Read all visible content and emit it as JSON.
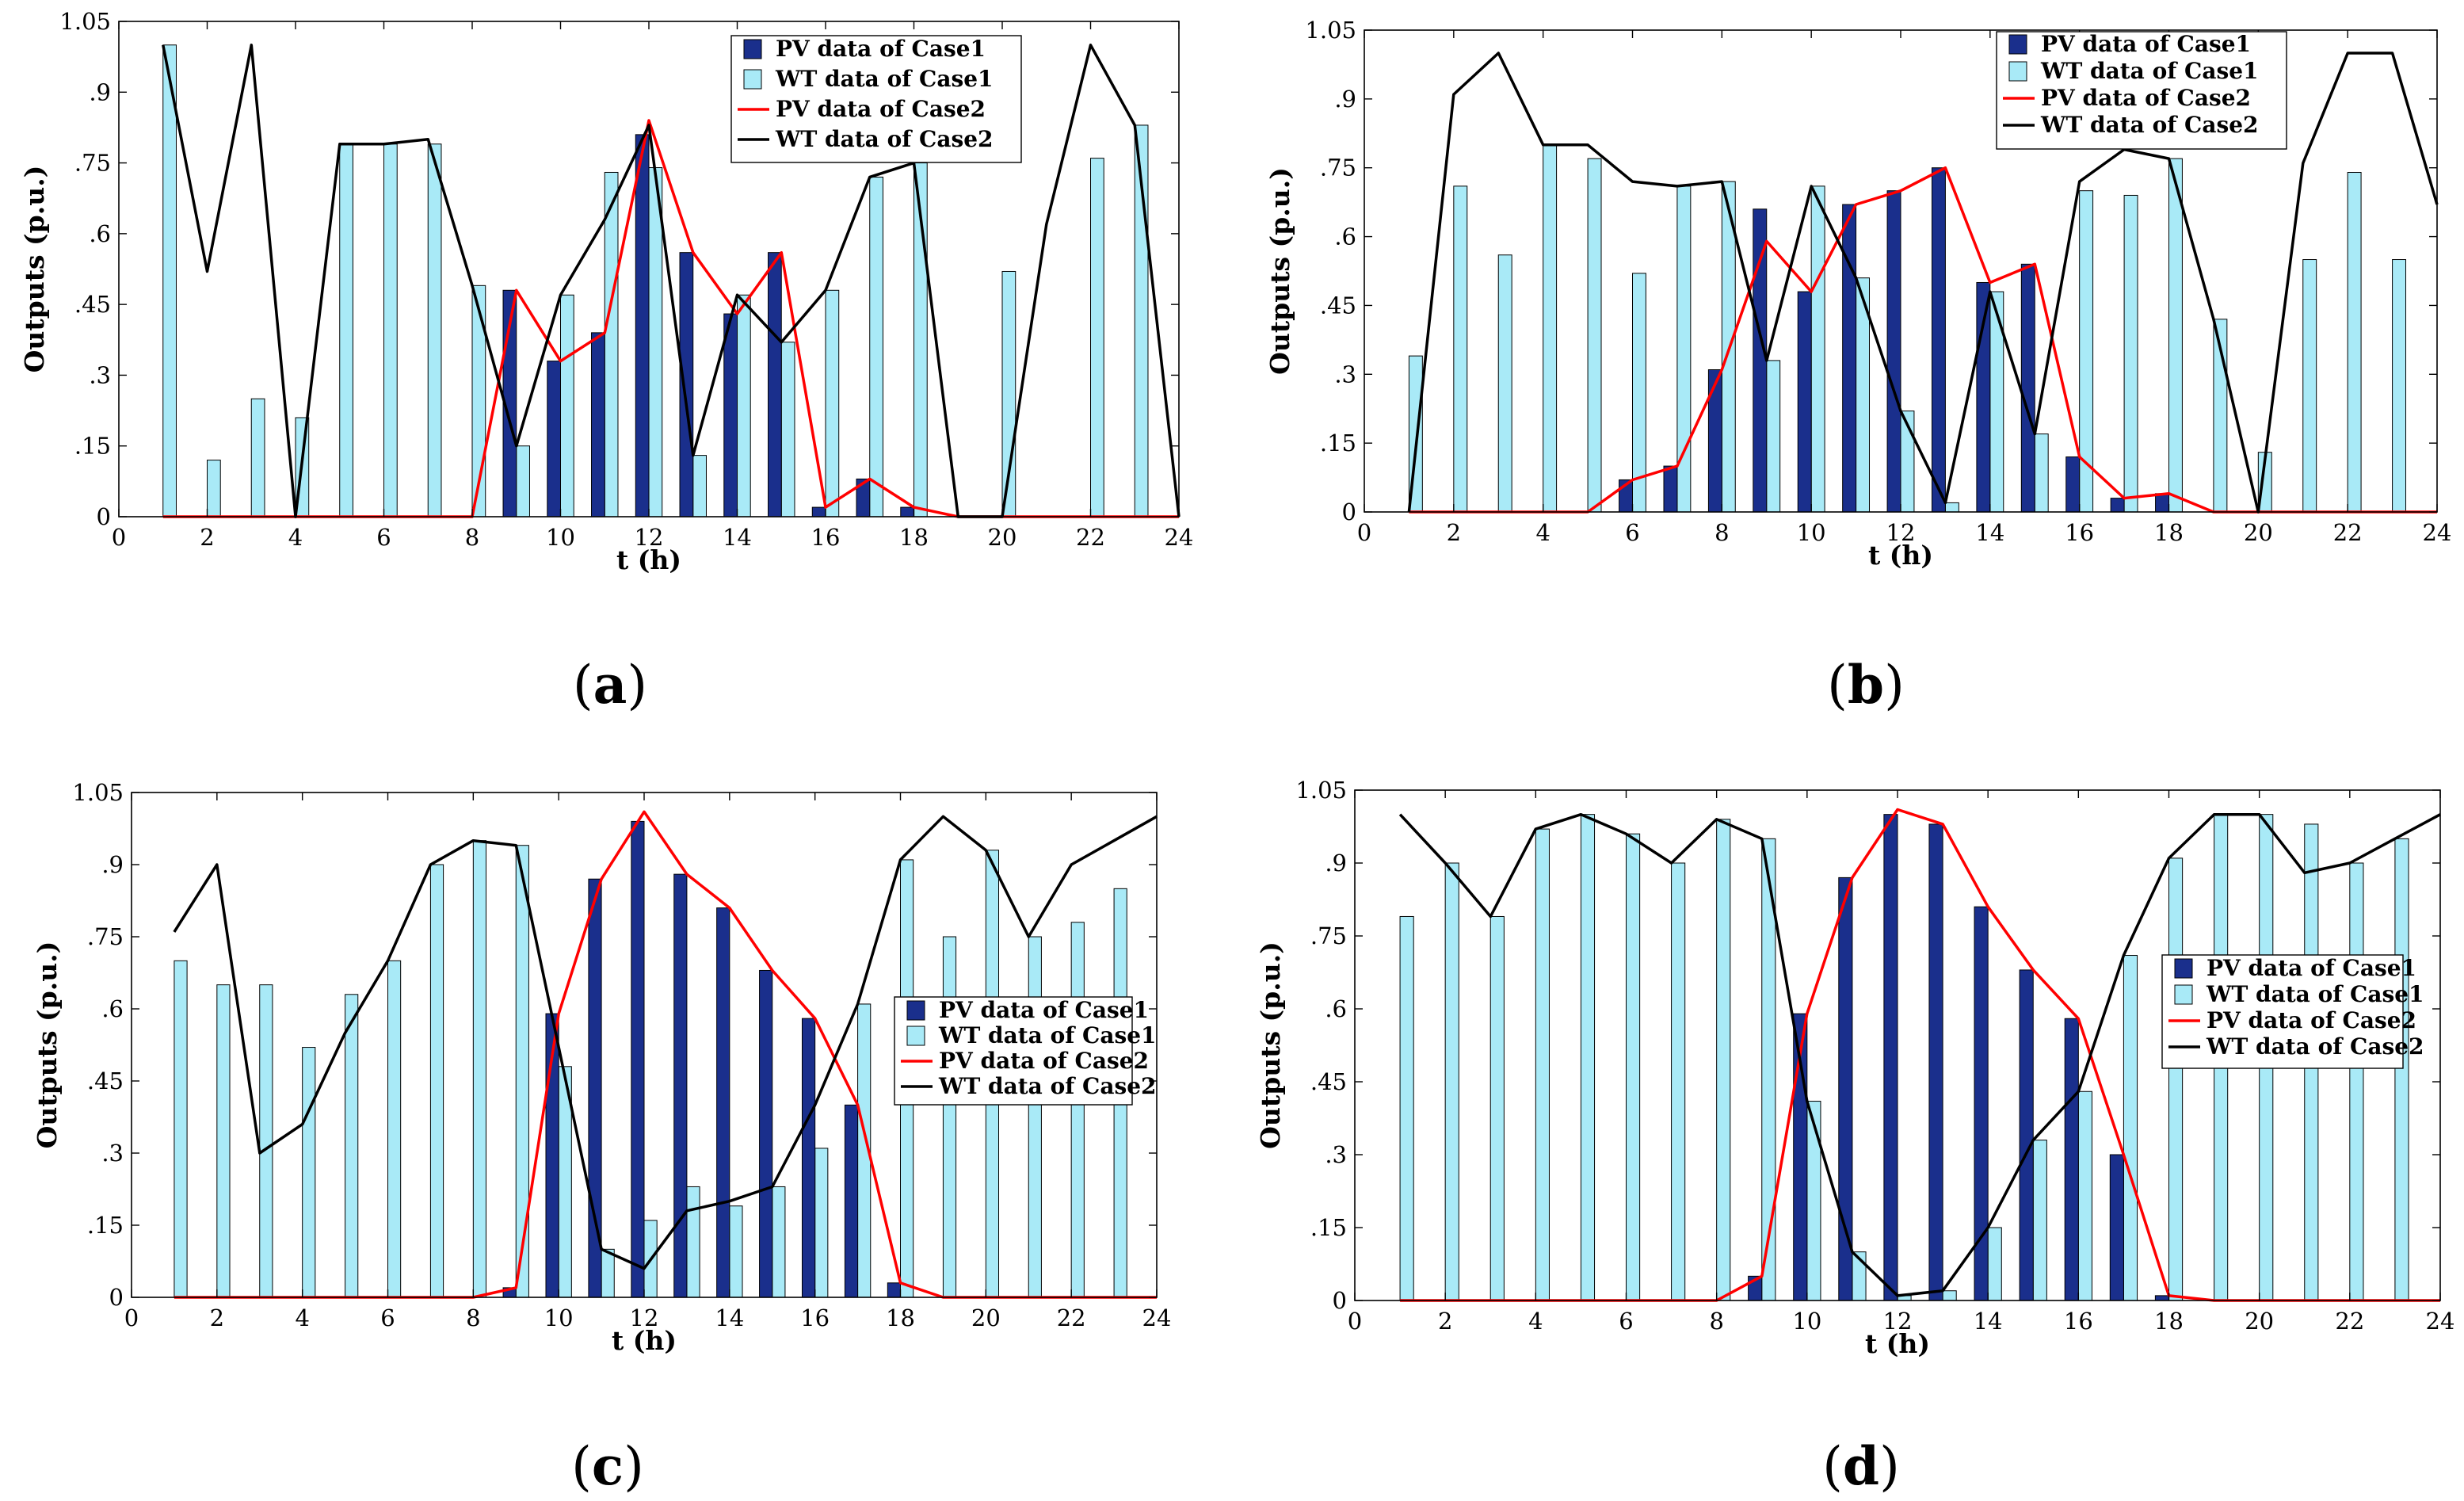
{
  "colors": {
    "pv_case1": "#1a2f8c",
    "wt_case1": "#a9eaf7",
    "pv_case2": "#ff0000",
    "wt_case2": "#000000",
    "bar_edge": "#000000"
  },
  "legend_labels": {
    "pv_case1": "PV data of Case1",
    "wt_case1": "WT data of Case1",
    "pv_case2": "PV data of Case2",
    "wt_case2": "WT data of Case2"
  },
  "chart_data": [
    {
      "caption": "a",
      "type": "bar+line",
      "xlabel": "t (h)",
      "ylabel": "Outputs (p.u.)",
      "xlim": [
        0,
        24
      ],
      "ylim": [
        0,
        1.05
      ],
      "xticks": [
        0,
        2,
        4,
        6,
        8,
        10,
        12,
        14,
        16,
        18,
        20,
        22,
        24
      ],
      "yticks": [
        0,
        0.15,
        0.3,
        0.45,
        0.6,
        0.75,
        0.9,
        1.05
      ],
      "legend_position": "top-right",
      "x": [
        1,
        2,
        3,
        4,
        5,
        6,
        7,
        8,
        9,
        10,
        11,
        12,
        13,
        14,
        15,
        16,
        17,
        18,
        19,
        20,
        21,
        22,
        23,
        24
      ],
      "series": [
        {
          "name": "PV data of Case1",
          "kind": "bar",
          "values": [
            0,
            0,
            0,
            0,
            0,
            0,
            0,
            0,
            0.48,
            0.33,
            0.39,
            0.81,
            0.56,
            0.43,
            0.56,
            0.02,
            0.08,
            0.02,
            0,
            0,
            0,
            0,
            0,
            0
          ]
        },
        {
          "name": "WT data of Case1",
          "kind": "bar",
          "values": [
            1.0,
            0.12,
            0.25,
            0.21,
            0.79,
            0.79,
            0.79,
            0.49,
            0.15,
            0.47,
            0.73,
            0.74,
            0.13,
            0.47,
            0.37,
            0.48,
            0.72,
            0.75,
            0,
            0.52,
            0,
            0.76,
            0.83,
            0
          ]
        },
        {
          "name": "PV data of Case2",
          "kind": "line",
          "values": [
            0,
            0,
            0,
            0,
            0,
            0,
            0,
            0,
            0.48,
            0.33,
            0.39,
            0.84,
            0.56,
            0.43,
            0.56,
            0.02,
            0.08,
            0.02,
            0,
            0,
            0,
            0,
            0,
            0
          ]
        },
        {
          "name": "WT data of Case2",
          "kind": "line",
          "values": [
            1.0,
            0.52,
            1.0,
            0,
            0.79,
            0.79,
            0.8,
            0.49,
            0.15,
            0.47,
            0.63,
            0.83,
            0.13,
            0.47,
            0.37,
            0.48,
            0.72,
            0.75,
            0,
            0,
            0.62,
            1.0,
            0.83,
            0
          ]
        }
      ]
    },
    {
      "caption": "b",
      "type": "bar+line",
      "xlabel": "t (h)",
      "ylabel": "Outputs (p.u.)",
      "xlim": [
        0,
        24
      ],
      "ylim": [
        0,
        1.05
      ],
      "xticks": [
        0,
        2,
        4,
        6,
        8,
        10,
        12,
        14,
        16,
        18,
        20,
        22,
        24
      ],
      "yticks": [
        0,
        0.15,
        0.3,
        0.45,
        0.6,
        0.75,
        0.9,
        1.05
      ],
      "legend_position": "top-right",
      "x": [
        1,
        2,
        3,
        4,
        5,
        6,
        7,
        8,
        9,
        10,
        11,
        12,
        13,
        14,
        15,
        16,
        17,
        18,
        19,
        20,
        21,
        22,
        23,
        24
      ],
      "series": [
        {
          "name": "PV data of Case1",
          "kind": "bar",
          "values": [
            0,
            0,
            0,
            0,
            0,
            0.07,
            0.1,
            0.31,
            0.66,
            0.48,
            0.67,
            0.7,
            0.75,
            0.5,
            0.54,
            0.12,
            0.03,
            0.04,
            0,
            0,
            0,
            0,
            0,
            0
          ]
        },
        {
          "name": "WT data of Case1",
          "kind": "bar",
          "values": [
            0.34,
            0.71,
            0.56,
            0.8,
            0.77,
            0.52,
            0.71,
            0.72,
            0.33,
            0.71,
            0.51,
            0.22,
            0.02,
            0.48,
            0.17,
            0.7,
            0.69,
            0.77,
            0.42,
            0.13,
            0.55,
            0.74,
            0.55,
            0
          ]
        },
        {
          "name": "PV data of Case2",
          "kind": "line",
          "values": [
            0,
            0,
            0,
            0,
            0,
            0.07,
            0.1,
            0.31,
            0.59,
            0.48,
            0.67,
            0.7,
            0.75,
            0.5,
            0.54,
            0.12,
            0.03,
            0.04,
            0,
            0,
            0,
            0,
            0,
            0
          ]
        },
        {
          "name": "WT data of Case2",
          "kind": "line",
          "values": [
            0,
            0.91,
            1.0,
            0.8,
            0.8,
            0.72,
            0.71,
            0.72,
            0.33,
            0.71,
            0.51,
            0.22,
            0.02,
            0.48,
            0.17,
            0.72,
            0.79,
            0.77,
            0.42,
            0,
            0.76,
            1.0,
            1.0,
            0.67
          ]
        }
      ]
    },
    {
      "caption": "c",
      "type": "bar+line",
      "xlabel": "t (h)",
      "ylabel": "Outputs (p.u.)",
      "xlim": [
        0,
        24
      ],
      "ylim": [
        0,
        1.05
      ],
      "xticks": [
        0,
        2,
        4,
        6,
        8,
        10,
        12,
        14,
        16,
        18,
        20,
        22,
        24
      ],
      "yticks": [
        0,
        0.15,
        0.3,
        0.45,
        0.6,
        0.75,
        0.9,
        1.05
      ],
      "legend_position": "middle-right",
      "x": [
        1,
        2,
        3,
        4,
        5,
        6,
        7,
        8,
        9,
        10,
        11,
        12,
        13,
        14,
        15,
        16,
        17,
        18,
        19,
        20,
        21,
        22,
        23,
        24
      ],
      "series": [
        {
          "name": "PV data of Case1",
          "kind": "bar",
          "values": [
            0,
            0,
            0,
            0,
            0,
            0,
            0,
            0,
            0.02,
            0.59,
            0.87,
            0.99,
            0.88,
            0.81,
            0.68,
            0.58,
            0.4,
            0.03,
            0,
            0,
            0,
            0,
            0,
            0
          ]
        },
        {
          "name": "WT data of Case1",
          "kind": "bar",
          "values": [
            0.7,
            0.65,
            0.65,
            0.52,
            0.63,
            0.7,
            0.9,
            0.95,
            0.94,
            0.48,
            0.1,
            0.16,
            0.23,
            0.19,
            0.23,
            0.31,
            0.61,
            0.91,
            0.75,
            0.93,
            0.75,
            0.78,
            0.85,
            0
          ]
        },
        {
          "name": "PV data of Case2",
          "kind": "line",
          "values": [
            0,
            0,
            0,
            0,
            0,
            0,
            0,
            0,
            0.02,
            0.59,
            0.87,
            1.01,
            0.88,
            0.81,
            0.68,
            0.58,
            0.4,
            0.03,
            0,
            0,
            0,
            0,
            0,
            0
          ]
        },
        {
          "name": "WT data of Case2",
          "kind": "line",
          "values": [
            0.76,
            0.9,
            0.3,
            0.36,
            0.55,
            0.7,
            0.9,
            0.95,
            0.94,
            0.52,
            0.1,
            0.06,
            0.18,
            0.2,
            0.23,
            0.4,
            0.61,
            0.91,
            1.0,
            0.93,
            0.75,
            0.9,
            0.95,
            1.0
          ]
        }
      ]
    },
    {
      "caption": "d",
      "type": "bar+line",
      "xlabel": "t (h)",
      "ylabel": "Outputs (p.u.)",
      "xlim": [
        0,
        24
      ],
      "ylim": [
        0,
        1.05
      ],
      "xticks": [
        0,
        2,
        4,
        6,
        8,
        10,
        12,
        14,
        16,
        18,
        20,
        22,
        24
      ],
      "yticks": [
        0,
        0.15,
        0.3,
        0.45,
        0.6,
        0.75,
        0.9,
        1.05
      ],
      "legend_position": "middle-right",
      "x": [
        1,
        2,
        3,
        4,
        5,
        6,
        7,
        8,
        9,
        10,
        11,
        12,
        13,
        14,
        15,
        16,
        17,
        18,
        19,
        20,
        21,
        22,
        23,
        24
      ],
      "series": [
        {
          "name": "PV data of Case1",
          "kind": "bar",
          "values": [
            0,
            0,
            0,
            0,
            0,
            0,
            0,
            0,
            0.05,
            0.59,
            0.87,
            1.0,
            0.98,
            0.81,
            0.68,
            0.58,
            0.3,
            0.01,
            0,
            0,
            0,
            0,
            0,
            0
          ]
        },
        {
          "name": "WT data of Case1",
          "kind": "bar",
          "values": [
            0.79,
            0.9,
            0.79,
            0.97,
            1.0,
            0.96,
            0.9,
            0.99,
            0.95,
            0.41,
            0.1,
            0.01,
            0.02,
            0.15,
            0.33,
            0.43,
            0.71,
            0.91,
            1.0,
            1.0,
            0.98,
            0.9,
            0.95,
            0
          ]
        },
        {
          "name": "PV data of Case2",
          "kind": "line",
          "values": [
            0,
            0,
            0,
            0,
            0,
            0,
            0,
            0,
            0.05,
            0.59,
            0.87,
            1.01,
            0.98,
            0.81,
            0.68,
            0.58,
            0.3,
            0.01,
            0,
            0,
            0,
            0,
            0,
            0
          ]
        },
        {
          "name": "WT data of Case2",
          "kind": "line",
          "values": [
            1.0,
            0.9,
            0.79,
            0.97,
            1.0,
            0.96,
            0.9,
            0.99,
            0.95,
            0.41,
            0.1,
            0.01,
            0.02,
            0.15,
            0.33,
            0.43,
            0.71,
            0.91,
            1.0,
            1.0,
            0.88,
            0.9,
            0.95,
            1.0
          ]
        }
      ]
    }
  ]
}
